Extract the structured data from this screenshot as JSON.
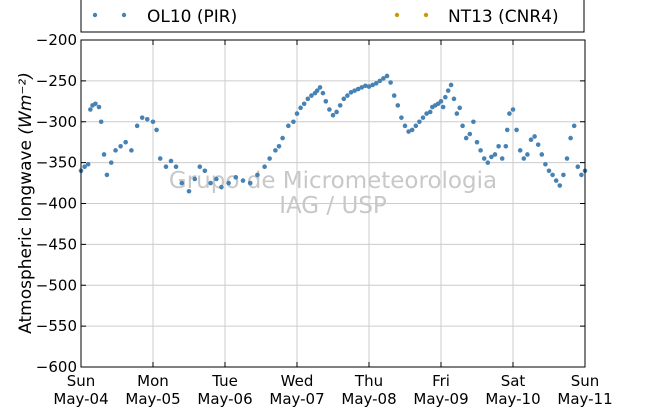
{
  "chart_data": {
    "type": "scatter",
    "ylabel": "Atmospheric longwave",
    "ylabel_unit": "(Wm⁻²)",
    "ylim": [
      -600,
      -200
    ],
    "yticks": [
      -200,
      -250,
      -300,
      -350,
      -400,
      -450,
      -500,
      -550,
      -600
    ],
    "ytick_labels": [
      "−200",
      "−250",
      "−300",
      "−350",
      "−400",
      "−450",
      "−500",
      "−550",
      "−600"
    ],
    "xlim": [
      0,
      7
    ],
    "xticks": [
      {
        "day": "Sun",
        "date": "May-04"
      },
      {
        "day": "Mon",
        "date": "May-05"
      },
      {
        "day": "Tue",
        "date": "May-06"
      },
      {
        "day": "Wed",
        "date": "May-07"
      },
      {
        "day": "Thu",
        "date": "May-08"
      },
      {
        "day": "Fri",
        "date": "May-09"
      },
      {
        "day": "Sat",
        "date": "May-10"
      },
      {
        "day": "Sun",
        "date": "May-11"
      }
    ],
    "grid": true,
    "legend_placement": "top",
    "series": [
      {
        "name": "OL10 (PIR)",
        "color": "#4682b4",
        "points": [
          [
            0.0,
            -360
          ],
          [
            0.05,
            -355
          ],
          [
            0.1,
            -352
          ],
          [
            0.13,
            -285
          ],
          [
            0.16,
            -280
          ],
          [
            0.2,
            -278
          ],
          [
            0.25,
            -282
          ],
          [
            0.28,
            -300
          ],
          [
            0.32,
            -340
          ],
          [
            0.36,
            -365
          ],
          [
            0.42,
            -350
          ],
          [
            0.48,
            -335
          ],
          [
            0.55,
            -330
          ],
          [
            0.62,
            -325
          ],
          [
            0.7,
            -335
          ],
          [
            0.78,
            -305
          ],
          [
            0.85,
            -295
          ],
          [
            0.92,
            -297
          ],
          [
            1.0,
            -300
          ],
          [
            1.05,
            -310
          ],
          [
            1.1,
            -345
          ],
          [
            1.18,
            -355
          ],
          [
            1.25,
            -348
          ],
          [
            1.32,
            -355
          ],
          [
            1.4,
            -375
          ],
          [
            1.5,
            -385
          ],
          [
            1.58,
            -370
          ],
          [
            1.65,
            -355
          ],
          [
            1.72,
            -360
          ],
          [
            1.8,
            -375
          ],
          [
            1.88,
            -370
          ],
          [
            1.95,
            -380
          ],
          [
            2.05,
            -375
          ],
          [
            2.15,
            -368
          ],
          [
            2.25,
            -372
          ],
          [
            2.35,
            -375
          ],
          [
            2.45,
            -365
          ],
          [
            2.55,
            -355
          ],
          [
            2.62,
            -345
          ],
          [
            2.7,
            -335
          ],
          [
            2.75,
            -330
          ],
          [
            2.8,
            -320
          ],
          [
            2.88,
            -305
          ],
          [
            2.95,
            -300
          ],
          [
            3.0,
            -290
          ],
          [
            3.05,
            -283
          ],
          [
            3.1,
            -278
          ],
          [
            3.15,
            -272
          ],
          [
            3.2,
            -268
          ],
          [
            3.25,
            -265
          ],
          [
            3.28,
            -262
          ],
          [
            3.32,
            -258
          ],
          [
            3.36,
            -265
          ],
          [
            3.4,
            -275
          ],
          [
            3.45,
            -285
          ],
          [
            3.5,
            -292
          ],
          [
            3.55,
            -288
          ],
          [
            3.6,
            -280
          ],
          [
            3.65,
            -272
          ],
          [
            3.7,
            -268
          ],
          [
            3.75,
            -264
          ],
          [
            3.8,
            -262
          ],
          [
            3.85,
            -260
          ],
          [
            3.9,
            -258
          ],
          [
            3.95,
            -256
          ],
          [
            4.0,
            -257
          ],
          [
            4.05,
            -255
          ],
          [
            4.1,
            -253
          ],
          [
            4.15,
            -250
          ],
          [
            4.2,
            -247
          ],
          [
            4.25,
            -244
          ],
          [
            4.3,
            -252
          ],
          [
            4.35,
            -268
          ],
          [
            4.4,
            -280
          ],
          [
            4.45,
            -295
          ],
          [
            4.5,
            -305
          ],
          [
            4.55,
            -312
          ],
          [
            4.6,
            -310
          ],
          [
            4.65,
            -305
          ],
          [
            4.7,
            -300
          ],
          [
            4.75,
            -295
          ],
          [
            4.8,
            -290
          ],
          [
            4.85,
            -288
          ],
          [
            4.88,
            -282
          ],
          [
            4.92,
            -280
          ],
          [
            4.96,
            -278
          ],
          [
            5.0,
            -275
          ],
          [
            5.03,
            -282
          ],
          [
            5.06,
            -270
          ],
          [
            5.1,
            -262
          ],
          [
            5.14,
            -255
          ],
          [
            5.18,
            -272
          ],
          [
            5.22,
            -290
          ],
          [
            5.26,
            -283
          ],
          [
            5.3,
            -305
          ],
          [
            5.35,
            -320
          ],
          [
            5.4,
            -315
          ],
          [
            5.45,
            -300
          ],
          [
            5.5,
            -325
          ],
          [
            5.55,
            -335
          ],
          [
            5.6,
            -345
          ],
          [
            5.65,
            -350
          ],
          [
            5.7,
            -343
          ],
          [
            5.75,
            -340
          ],
          [
            5.8,
            -330
          ],
          [
            5.85,
            -345
          ],
          [
            5.9,
            -330
          ],
          [
            5.92,
            -310
          ],
          [
            5.95,
            -290
          ],
          [
            6.0,
            -285
          ],
          [
            6.05,
            -310
          ],
          [
            6.1,
            -335
          ],
          [
            6.15,
            -345
          ],
          [
            6.2,
            -340
          ],
          [
            6.25,
            -322
          ],
          [
            6.3,
            -318
          ],
          [
            6.35,
            -328
          ],
          [
            6.4,
            -340
          ],
          [
            6.45,
            -352
          ],
          [
            6.5,
            -360
          ],
          [
            6.55,
            -365
          ],
          [
            6.6,
            -372
          ],
          [
            6.65,
            -378
          ],
          [
            6.7,
            -365
          ],
          [
            6.75,
            -345
          ],
          [
            6.8,
            -320
          ],
          [
            6.85,
            -305
          ],
          [
            6.9,
            -355
          ],
          [
            6.95,
            -365
          ],
          [
            7.0,
            -360
          ]
        ]
      },
      {
        "name": "NT13 (CNR4)",
        "color": "#cc9a06",
        "points": []
      }
    ],
    "watermark": [
      "Grupo de Micrometeorologia",
      "IAG / USP"
    ]
  }
}
